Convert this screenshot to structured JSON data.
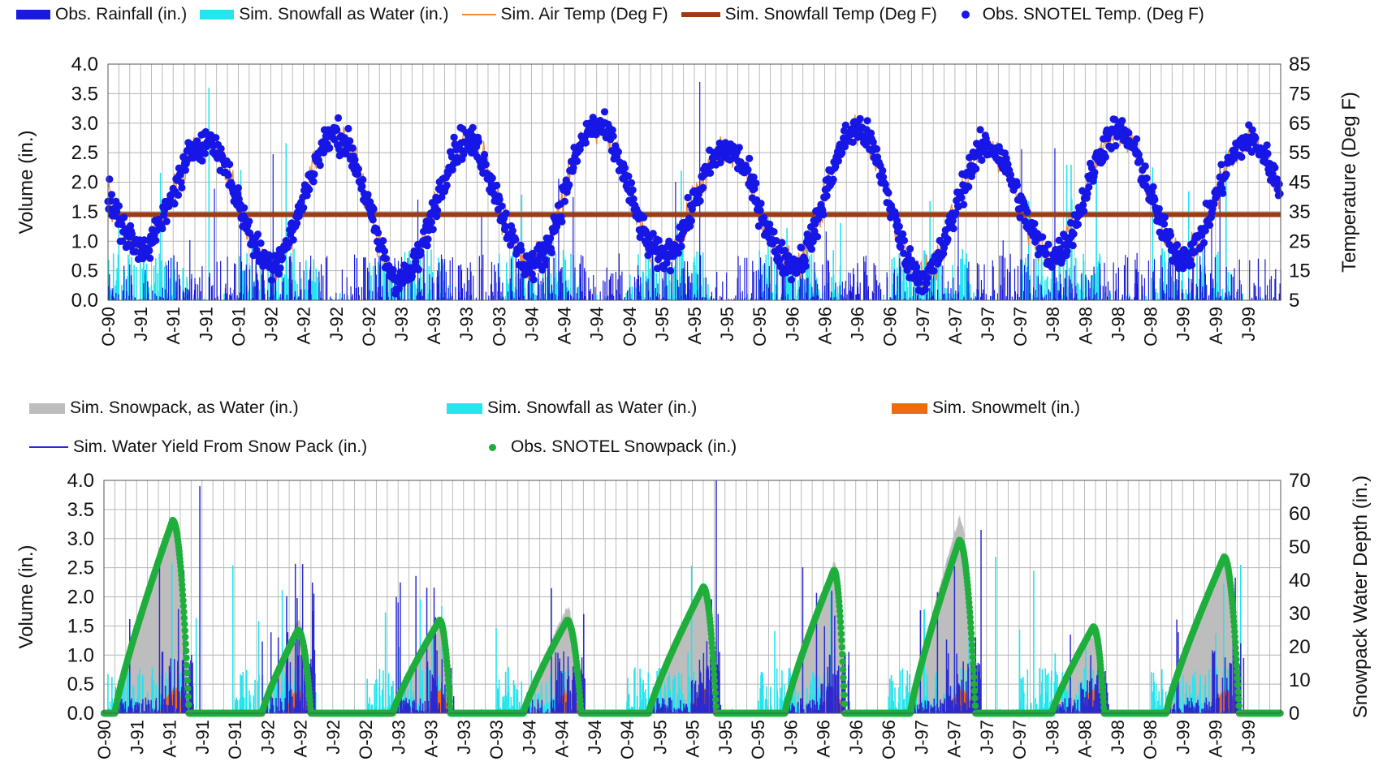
{
  "colors": {
    "obs_rainfall": "#1a1adb",
    "sim_snowfall": "#22e5ee",
    "air_temp": "#f08a3a",
    "snowfall_temp": "#9b3c14",
    "snotel_temp": "#1616e6",
    "snowpack": "#bdbdbd",
    "snowmelt": "#f26a10",
    "water_yield": "#2a2acf",
    "snotel_snowpack": "#1fae3c"
  },
  "chart_data": [
    {
      "type": "line",
      "legend": [
        {
          "label": "Obs. Rainfall (in.)",
          "icon": "bar-swatch",
          "color": "#1a1adb"
        },
        {
          "label": "Sim. Snowfall as Water (in.)",
          "icon": "bar-swatch",
          "color": "#22e5ee"
        },
        {
          "label": "Sim. Air Temp (Deg F)",
          "icon": "line-swatch",
          "color": "#f08a3a"
        },
        {
          "label": "Sim. Snowfall Temp (Deg F)",
          "icon": "thick-line-swatch",
          "color": "#9b3c14"
        },
        {
          "label": "Obs. SNOTEL Temp. (Deg F)",
          "icon": "dot-swatch",
          "color": "#1616e6"
        }
      ],
      "ylabel": "Volume (in.)",
      "y2label": "Temperature (Deg F)",
      "ylim": [
        0,
        4
      ],
      "y2lim": [
        5,
        85
      ],
      "yticks": [
        "0.0",
        "0.5",
        "1.0",
        "1.5",
        "2.0",
        "2.5",
        "3.0",
        "3.5",
        "4.0"
      ],
      "y2ticks": [
        "5",
        "15",
        "25",
        "35",
        "45",
        "55",
        "65",
        "75",
        "85"
      ],
      "x_tick_labels": [
        "O-90",
        "J-91",
        "A-91",
        "J-91",
        "O-91",
        "J-92",
        "A-92",
        "J-92",
        "O-92",
        "J-93",
        "A-93",
        "J-93",
        "O-93",
        "J-94",
        "A-94",
        "J-94",
        "O-94",
        "J-95",
        "A-95",
        "J-95",
        "O-95",
        "J-96",
        "A-96",
        "J-96",
        "O-96",
        "J-97",
        "A-97",
        "J-97",
        "O-97",
        "J-98",
        "A-98",
        "J-98",
        "O-98",
        "J-99",
        "A-99",
        "J-99"
      ],
      "grid": true,
      "snowfall_temp_value": 34,
      "temp_seasonal_peaks_degF": [
        59,
        61,
        59,
        64,
        56,
        63,
        57,
        62,
        59
      ],
      "temp_seasonal_troughs_degF": [
        23,
        18,
        12,
        17,
        20,
        17,
        13,
        20,
        20,
        24
      ],
      "max_rainfall_in": 3.7,
      "max_snowfall_in": 3.6
    },
    {
      "type": "area",
      "legend": [
        {
          "label": "Sim. Snowpack, as Water (in.)",
          "icon": "bar-swatch",
          "color": "#bdbdbd"
        },
        {
          "label": "Sim. Snowfall as Water (in.)",
          "icon": "bar-swatch",
          "color": "#22e5ee"
        },
        {
          "label": "Sim. Snowmelt (in.)",
          "icon": "bar-swatch",
          "color": "#f26a10"
        },
        {
          "label": "Sim. Water Yield From Snow Pack (in.)",
          "icon": "line-swatch",
          "color": "#2a2acf"
        },
        {
          "label": "Obs. SNOTEL Snowpack (in.)",
          "icon": "dot-swatch",
          "color": "#1fae3c"
        }
      ],
      "ylabel": "Volume (in.)",
      "y2label": "Snowpack Water Depth (in.)",
      "ylim": [
        0,
        4
      ],
      "y2lim": [
        0,
        70
      ],
      "yticks": [
        "0.0",
        "0.5",
        "1.0",
        "1.5",
        "2.0",
        "2.5",
        "3.0",
        "3.5",
        "4.0"
      ],
      "y2ticks": [
        "0",
        "10",
        "20",
        "30",
        "40",
        "50",
        "60",
        "70"
      ],
      "x_tick_labels": [
        "O-90",
        "J-91",
        "A-91",
        "J-91",
        "O-91",
        "J-92",
        "A-92",
        "J-92",
        "O-92",
        "J-93",
        "A-93",
        "J-93",
        "O-93",
        "J-94",
        "A-94",
        "J-94",
        "O-94",
        "J-95",
        "A-95",
        "J-95",
        "O-95",
        "J-96",
        "A-96",
        "J-96",
        "O-96",
        "J-97",
        "A-97",
        "J-97",
        "O-97",
        "J-98",
        "A-98",
        "J-98",
        "O-98",
        "J-99",
        "A-99",
        "J-99"
      ],
      "grid": true,
      "snowpack_seasons": [
        {
          "water_year": 1991,
          "start_month": 1.0,
          "peak_month": 6.3,
          "end_month": 7.8,
          "obs_peak": 58,
          "sim_peak": 57
        },
        {
          "water_year": 1992,
          "start_month": 2.5,
          "peak_month": 5.8,
          "end_month": 7.0,
          "obs_peak": 25,
          "sim_peak": 28
        },
        {
          "water_year": 1993,
          "start_month": 2.5,
          "peak_month": 6.8,
          "end_month": 7.8,
          "obs_peak": 28,
          "sim_peak": 26
        },
        {
          "water_year": 1994,
          "start_month": 2.5,
          "peak_month": 6.5,
          "end_month": 7.8,
          "obs_peak": 28,
          "sim_peak": 32
        },
        {
          "water_year": 1995,
          "start_month": 2.0,
          "peak_month": 7.0,
          "end_month": 8.2,
          "obs_peak": 38,
          "sim_peak": 38
        },
        {
          "water_year": 1996,
          "start_month": 2.5,
          "peak_month": 7.0,
          "end_month": 8.0,
          "obs_peak": 43,
          "sim_peak": 46
        },
        {
          "water_year": 1997,
          "start_month": 2.0,
          "peak_month": 6.5,
          "end_month": 8.0,
          "obs_peak": 52,
          "sim_peak": 59
        },
        {
          "water_year": 1998,
          "start_month": 3.0,
          "peak_month": 6.8,
          "end_month": 7.8,
          "obs_peak": 26,
          "sim_peak": 24
        },
        {
          "water_year": 1999,
          "start_month": 1.5,
          "peak_month": 6.8,
          "end_month": 8.2,
          "obs_peak": 47,
          "sim_peak": 48
        }
      ],
      "max_water_yield_in": 4.0
    }
  ]
}
